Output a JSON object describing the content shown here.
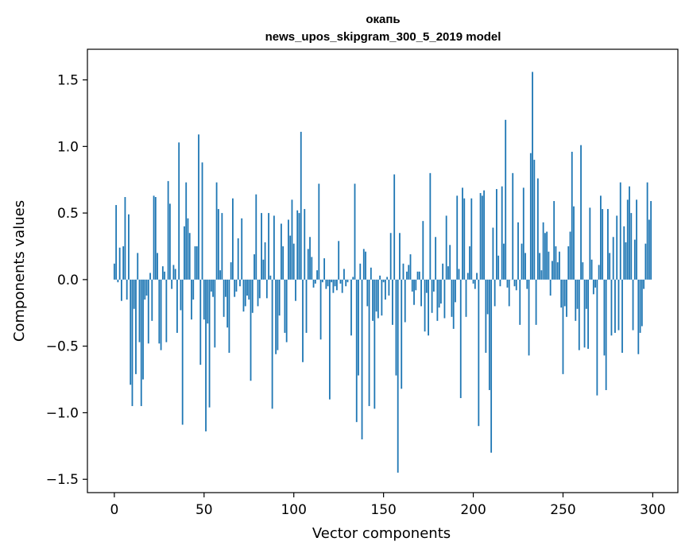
{
  "chart_data": {
    "type": "bar",
    "title_line1": "окапь",
    "title_line2": "news_upos_skipgram_300_5_2019 model",
    "xlabel": "Vector components",
    "ylabel": "Components values",
    "xlim": [
      -15,
      314
    ],
    "ylim": [
      -1.6,
      1.73
    ],
    "xticks": [
      0,
      50,
      100,
      150,
      200,
      250,
      300
    ],
    "xtick_labels": [
      "0",
      "50",
      "100",
      "150",
      "200",
      "250",
      "300"
    ],
    "yticks": [
      -1.5,
      -1.0,
      -0.5,
      0.0,
      0.5,
      1.0,
      1.5
    ],
    "ytick_labels": [
      "−1.5",
      "−1.0",
      "−0.5",
      "0.0",
      "0.5",
      "1.0",
      "1.5"
    ],
    "bar_color": "#1f77b4",
    "values": [
      0.12,
      0.56,
      -0.02,
      0.24,
      -0.16,
      0.25,
      0.62,
      -0.15,
      0.49,
      -0.79,
      -0.95,
      -0.22,
      -0.71,
      0.2,
      -0.47,
      -0.95,
      -0.75,
      -0.15,
      -0.12,
      -0.48,
      0.05,
      -0.31,
      0.63,
      0.62,
      0.2,
      -0.48,
      -0.53,
      0.1,
      0.06,
      -0.47,
      0.74,
      0.57,
      -0.07,
      0.11,
      0.08,
      -0.4,
      1.03,
      -0.23,
      -1.09,
      0.4,
      0.73,
      0.46,
      0.35,
      -0.3,
      -0.15,
      0.25,
      0.25,
      1.09,
      -0.64,
      0.88,
      -0.3,
      -1.14,
      -0.33,
      -0.96,
      -0.09,
      -0.13,
      -0.51,
      0.73,
      0.53,
      0.07,
      0.5,
      -0.28,
      -0.13,
      -0.36,
      -0.55,
      0.13,
      0.61,
      -0.13,
      -0.09,
      0.31,
      -0.05,
      0.46,
      -0.24,
      -0.2,
      -0.12,
      -0.15,
      -0.76,
      -0.25,
      0.19,
      0.64,
      -0.2,
      -0.14,
      0.5,
      0.15,
      0.28,
      -0.14,
      0.5,
      0.03,
      -0.97,
      0.48,
      -0.56,
      -0.53,
      -0.27,
      0.42,
      0.25,
      -0.4,
      -0.47,
      0.45,
      0.33,
      0.6,
      0.27,
      -0.16,
      0.52,
      0.5,
      1.11,
      -0.62,
      0.53,
      -0.4,
      0.23,
      0.32,
      0.17,
      -0.06,
      -0.03,
      0.07,
      0.72,
      -0.45,
      -0.02,
      0.16,
      -0.07,
      -0.05,
      -0.9,
      -0.02,
      -0.1,
      -0.05,
      -0.08,
      0.29,
      -0.03,
      -0.1,
      0.08,
      -0.05,
      -0.02,
      0.0,
      -0.42,
      0.02,
      0.72,
      -1.07,
      -0.72,
      0.12,
      -1.2,
      0.23,
      0.21,
      -0.2,
      -0.95,
      0.09,
      -0.31,
      -0.97,
      -0.24,
      -0.29,
      0.03,
      -0.27,
      -0.02,
      -0.15,
      0.02,
      -0.12,
      0.35,
      -0.34,
      0.79,
      -0.72,
      -1.45,
      0.35,
      -0.82,
      0.12,
      -0.32,
      0.06,
      0.11,
      0.19,
      -0.09,
      -0.19,
      -0.08,
      0.06,
      0.06,
      -0.2,
      0.44,
      -0.39,
      -0.1,
      -0.42,
      0.8,
      -0.25,
      -0.09,
      0.32,
      -0.31,
      -0.21,
      -0.18,
      0.12,
      -0.29,
      0.48,
      0.1,
      0.26,
      -0.28,
      -0.37,
      -0.17,
      0.63,
      0.08,
      -0.89,
      0.69,
      0.61,
      -0.28,
      0.05,
      0.25,
      0.61,
      -0.03,
      -0.07,
      0.05,
      -1.1,
      0.65,
      0.63,
      0.67,
      -0.55,
      -0.26,
      -0.83,
      -1.3,
      0.39,
      -0.2,
      0.68,
      0.18,
      -0.05,
      0.7,
      0.27,
      1.2,
      -0.06,
      -0.2,
      0.0,
      0.8,
      -0.05,
      -0.08,
      0.43,
      -0.34,
      0.27,
      0.69,
      0.2,
      -0.07,
      -0.57,
      0.95,
      1.56,
      0.9,
      -0.34,
      0.76,
      0.2,
      0.07,
      0.43,
      0.35,
      0.36,
      0.21,
      -0.12,
      0.14,
      0.59,
      0.25,
      0.13,
      0.21,
      -0.21,
      -0.71,
      -0.2,
      -0.28,
      0.25,
      0.36,
      0.96,
      0.55,
      -0.31,
      -0.22,
      -0.53,
      1.01,
      0.13,
      -0.51,
      -0.22,
      -0.52,
      0.54,
      0.15,
      -0.11,
      -0.06,
      -0.87,
      0.11,
      0.63,
      0.53,
      -0.57,
      -0.83,
      0.53,
      0.2,
      -0.42,
      0.32,
      -0.4,
      0.48,
      -0.38,
      0.73,
      -0.55,
      0.4,
      0.28,
      0.6,
      0.7,
      0.5,
      -0.38,
      0.3,
      0.6,
      -0.56,
      -0.4,
      -0.35,
      -0.07,
      0.27,
      0.73,
      0.45,
      0.59
    ]
  }
}
